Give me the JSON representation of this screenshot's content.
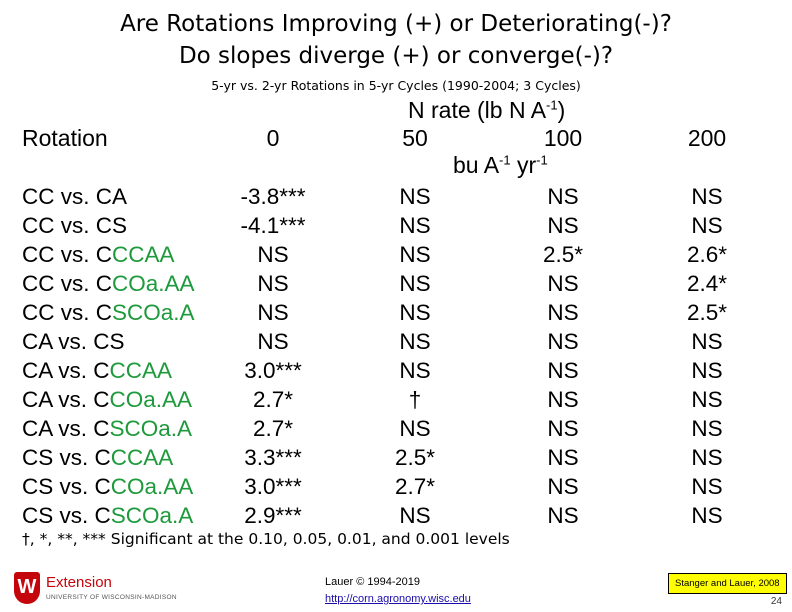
{
  "title": {
    "line1": "Are Rotations Improving (+) or Deteriorating(-)?",
    "line2": "Do slopes diverge (+) or converge(-)?",
    "subtitle": "5-yr vs. 2-yr Rotations in 5-yr Cycles (1990-2004; 3 Cycles)"
  },
  "table": {
    "n_rate_label": "N rate (lb N A",
    "n_rate_sup": "-1",
    "n_rate_close": ")",
    "rotation_header": "Rotation",
    "rates": [
      "0",
      "50",
      "100",
      "200"
    ],
    "bu_label": "bu A",
    "bu_sup1": "-1",
    "bu_yr": " yr",
    "bu_sup2": "-1",
    "rows": [
      {
        "base": "CC vs. ",
        "hl": "CA",
        "green": false,
        "v": [
          "-3.8***",
          "NS",
          "NS",
          "NS"
        ]
      },
      {
        "base": "CC vs. ",
        "hl": "CS",
        "green": false,
        "v": [
          "-4.1***",
          "NS",
          "NS",
          "NS"
        ]
      },
      {
        "base": "CC vs. ",
        "hl": "CCCAA",
        "green": true,
        "v": [
          "NS",
          "NS",
          "2.5*",
          "2.6*"
        ]
      },
      {
        "base": "CC vs. ",
        "hl": "CCOa.AA",
        "green": true,
        "v": [
          "NS",
          "NS",
          "NS",
          "2.4*"
        ]
      },
      {
        "base": "CC vs. ",
        "hl": "CSCOa.A",
        "green": true,
        "v": [
          "NS",
          "NS",
          "NS",
          "2.5*"
        ]
      },
      {
        "base": "CA vs. ",
        "hl": "CS",
        "green": false,
        "v": [
          "NS",
          "NS",
          "NS",
          "NS"
        ]
      },
      {
        "base": "CA vs. ",
        "hl": "CCCAA",
        "green": true,
        "v": [
          "3.0***",
          "NS",
          "NS",
          "NS"
        ]
      },
      {
        "base": "CA vs. ",
        "hl": "CCOa.AA",
        "green": true,
        "v": [
          "2.7*",
          "†",
          "NS",
          "NS"
        ]
      },
      {
        "base": "CA vs. ",
        "hl": "CSCOa.A",
        "green": true,
        "v": [
          "2.7*",
          "NS",
          "NS",
          "NS"
        ]
      },
      {
        "base": "CS vs. ",
        "hl": "CCCAA",
        "green": true,
        "v": [
          "3.3***",
          "2.5*",
          "NS",
          "NS"
        ]
      },
      {
        "base": "CS vs. ",
        "hl": "CCOa.AA",
        "green": true,
        "v": [
          "3.0***",
          "2.7*",
          "NS",
          "NS"
        ]
      },
      {
        "base": "CS vs. ",
        "hl": "CSCOa.A",
        "green": true,
        "v": [
          "2.9***",
          "NS",
          "NS",
          "NS"
        ]
      }
    ]
  },
  "footnote": "†, *, **, *** Significant at the 0.10, 0.05, 0.01, and 0.001 levels",
  "footer": {
    "logo_letter": "W",
    "logo_name": "Extension",
    "logo_univ": "UNIVERSITY OF WISCONSIN-MADISON",
    "author": "Lauer © 1994-2019",
    "url": "http://corn.agronomy.wisc.edu",
    "citation": "Stanger and Lauer, 2008",
    "page_number": "24"
  },
  "colors": {
    "highlight_green": "#1e9a3c",
    "citation_bg": "#ffff00",
    "logo_red": "#c5050c"
  }
}
